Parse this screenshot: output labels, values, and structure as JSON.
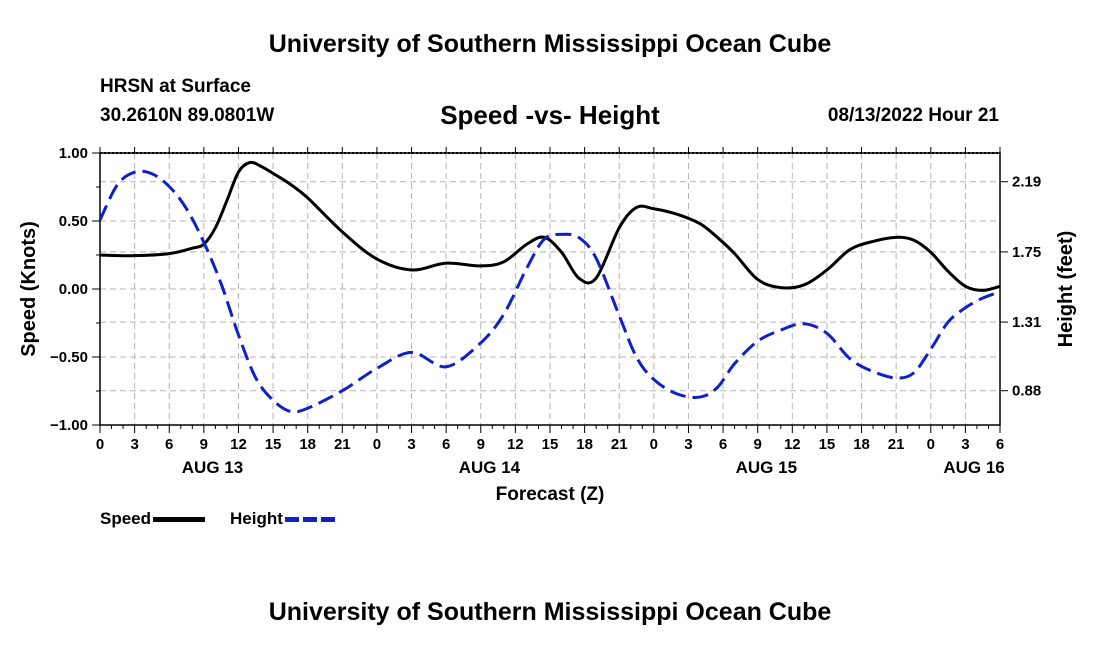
{
  "page": {
    "title_top": "University of Southern Mississippi Ocean Cube",
    "title_bottom": "University of Southern Mississippi Ocean Cube",
    "station": "HRSN at Surface",
    "coords": "30.2610N  89.0801W",
    "subtitle": "Speed -vs- Height",
    "datetime": "08/13/2022 Hour 21"
  },
  "legend": {
    "speed_label": "Speed",
    "height_label": "Height"
  },
  "colors": {
    "speed": "#000000",
    "height": "#1020c8",
    "grid": "#b4b4b4"
  },
  "chart_data": {
    "type": "line",
    "xlabel": "Forecast (Z)",
    "ylabel": "Speed (Knots)",
    "y2label": "Height (feet)",
    "x_range_hours": [
      0,
      78
    ],
    "x_tick_step_hours": 3,
    "x_tick_labels": [
      "0",
      "3",
      "6",
      "9",
      "12",
      "15",
      "18",
      "21",
      "0",
      "3",
      "6",
      "9",
      "12",
      "15",
      "18",
      "21",
      "0",
      "3",
      "6",
      "9",
      "12",
      "15",
      "18",
      "21",
      "0",
      "3",
      "6"
    ],
    "date_labels": [
      {
        "label": "AUG 13",
        "hour": 9.75
      },
      {
        "label": "AUG 14",
        "hour": 33.75
      },
      {
        "label": "AUG 15",
        "hour": 57.75
      },
      {
        "label": "AUG 16",
        "hour": 75.75
      }
    ],
    "ylim": [
      -1.0,
      1.0
    ],
    "y_ticks": [
      -1.0,
      -0.5,
      0.0,
      0.5,
      1.0
    ],
    "y_tick_labels": [
      "−1.00",
      "−0.50",
      "0.00",
      "0.50",
      "1.00"
    ],
    "y2lim": [
      0.665,
      2.37
    ],
    "y2_ticks": [
      0.88,
      1.31,
      1.75,
      2.19
    ],
    "y2_tick_labels": [
      "0.88",
      "1.31",
      "1.75",
      "2.19"
    ],
    "grid": true,
    "series": [
      {
        "name": "Speed",
        "axis": "left",
        "style": "solid",
        "x": [
          0,
          3,
          6,
          8,
          9,
          10,
          11,
          12,
          13,
          14,
          15,
          16.5,
          18,
          21,
          24,
          27,
          30,
          33,
          35,
          37,
          38.5,
          40,
          41.5,
          43,
          45,
          46.5,
          48,
          50,
          52,
          53.5,
          55,
          57,
          59,
          61,
          63,
          65,
          67,
          69,
          70.5,
          72,
          73.5,
          75,
          76.5,
          78
        ],
        "values": [
          0.25,
          0.245,
          0.26,
          0.3,
          0.33,
          0.45,
          0.65,
          0.86,
          0.93,
          0.9,
          0.85,
          0.77,
          0.67,
          0.42,
          0.22,
          0.14,
          0.19,
          0.17,
          0.2,
          0.33,
          0.38,
          0.27,
          0.08,
          0.08,
          0.45,
          0.6,
          0.59,
          0.55,
          0.48,
          0.38,
          0.26,
          0.07,
          0.01,
          0.03,
          0.14,
          0.29,
          0.35,
          0.38,
          0.36,
          0.27,
          0.13,
          0.02,
          -0.01,
          0.02
        ]
      },
      {
        "name": "Height",
        "axis": "right",
        "style": "dashed",
        "x": [
          0,
          1.5,
          3,
          4.5,
          6,
          7.5,
          9,
          10.5,
          12,
          13.5,
          15,
          16.5,
          18,
          21,
          24,
          27,
          30,
          33,
          35,
          37,
          38.5,
          40,
          41.5,
          43,
          45,
          46.5,
          48,
          50,
          52,
          53.5,
          55,
          57,
          59,
          61,
          63,
          65,
          67,
          69,
          70.5,
          72,
          73.5,
          75,
          76.5,
          78
        ],
        "values": [
          1.95,
          2.17,
          2.25,
          2.24,
          2.16,
          2.02,
          1.81,
          1.55,
          1.23,
          0.96,
          0.82,
          0.75,
          0.77,
          0.88,
          1.02,
          1.12,
          1.03,
          1.18,
          1.36,
          1.65,
          1.83,
          1.86,
          1.84,
          1.71,
          1.35,
          1.09,
          0.95,
          0.86,
          0.84,
          0.9,
          1.05,
          1.19,
          1.26,
          1.3,
          1.24,
          1.08,
          1.0,
          0.96,
          0.99,
          1.14,
          1.31,
          1.4,
          1.46,
          1.5
        ]
      }
    ]
  }
}
